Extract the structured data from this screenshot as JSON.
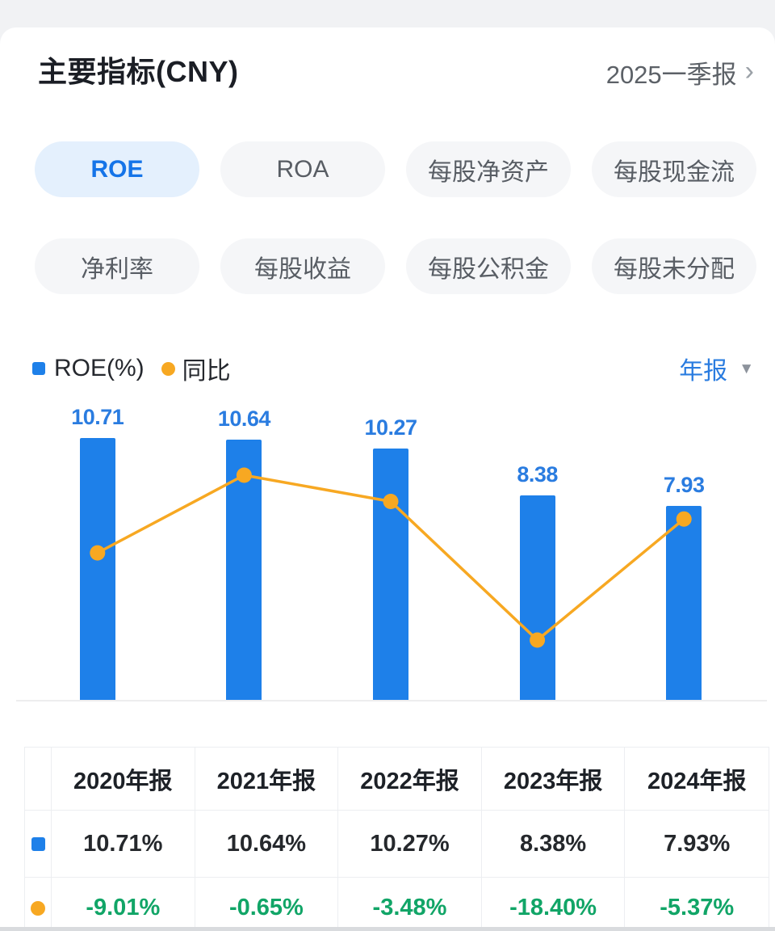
{
  "header": {
    "title": "主要指标(CNY)",
    "period": "2025一季报",
    "chevron": "›"
  },
  "tabs": {
    "rows": [
      [
        {
          "label": "ROE",
          "active": true
        },
        {
          "label": "ROA",
          "active": false
        },
        {
          "label": "每股净资产",
          "active": false
        },
        {
          "label": "每股现金流",
          "active": false
        }
      ],
      [
        {
          "label": "净利率",
          "active": false
        },
        {
          "label": "每股收益",
          "active": false
        },
        {
          "label": "每股公积金",
          "active": false
        },
        {
          "label": "每股未分配",
          "active": false
        }
      ]
    ]
  },
  "legend": {
    "bar_series": "ROE(%)",
    "line_series": "同比",
    "period_filter": "年报",
    "caret": "▼"
  },
  "chart_data": {
    "type": "bar",
    "categories": [
      "2020年报",
      "2021年报",
      "2022年报",
      "2023年报",
      "2024年报"
    ],
    "series": [
      {
        "name": "ROE(%)",
        "type": "bar",
        "values": [
          10.71,
          10.64,
          10.27,
          8.38,
          7.93
        ],
        "labels": [
          "10.71",
          "10.64",
          "10.27",
          "8.38",
          "7.93"
        ],
        "color": "#1e80e9"
      },
      {
        "name": "同比",
        "type": "line",
        "values": [
          -9.01,
          -0.65,
          -3.48,
          -18.4,
          -5.37
        ],
        "color": "#f7a822"
      }
    ],
    "title": "",
    "xlabel": "",
    "ylabel": "",
    "grid": false,
    "legend_position": "top-left",
    "axes_hidden": true,
    "bar_baseline": 0
  },
  "table": {
    "col_headers": [
      "",
      "2020年报",
      "2021年报",
      "2022年报",
      "2023年报",
      "2024年报"
    ],
    "rows": [
      {
        "icon": "blue-square",
        "series": "ROE(%)",
        "cells": [
          "10.71%",
          "10.64%",
          "10.27%",
          "8.38%",
          "7.93%"
        ],
        "negative": false
      },
      {
        "icon": "orange-dot",
        "series": "同比",
        "cells": [
          "-9.01%",
          "-0.65%",
          "-3.48%",
          "-18.40%",
          "-5.37%"
        ],
        "negative": true
      }
    ]
  },
  "colors": {
    "bar_blue": "#1e80e9",
    "value_label_blue": "#2a7ce0",
    "line_orange": "#f7a822",
    "negative_green": "#11a567",
    "active_tab_bg": "#e4f0fd",
    "active_tab_text": "#1574e8",
    "tab_bg": "#f5f6f8",
    "table_border": "#eceef1"
  }
}
